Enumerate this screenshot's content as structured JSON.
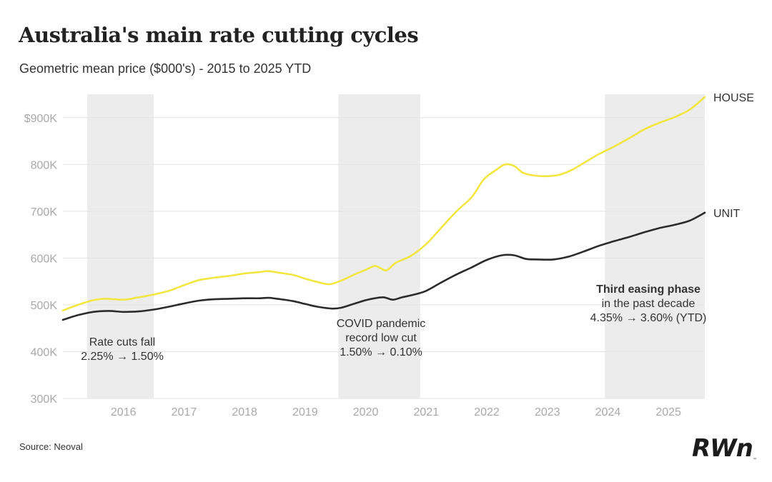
{
  "chart_data": {
    "type": "line",
    "title": "Australia's main rate cutting cycles",
    "subtitle": "Geometric mean price ($000's) - 2015 to 2025 YTD",
    "source": "Source: Neoval",
    "ylim": [
      300,
      950
    ],
    "y_ticks": [
      {
        "value": 300,
        "label": "300K"
      },
      {
        "value": 400,
        "label": "400K"
      },
      {
        "value": 500,
        "label": "500K"
      },
      {
        "value": 600,
        "label": "600K"
      },
      {
        "value": 700,
        "label": "700K"
      },
      {
        "value": 800,
        "label": "800K"
      },
      {
        "value": 900,
        "label": "$900K"
      }
    ],
    "xlim": [
      2015.0,
      2025.6
    ],
    "x_ticks": [
      {
        "value": 2016,
        "label": "2016"
      },
      {
        "value": 2017,
        "label": "2017"
      },
      {
        "value": 2018,
        "label": "2018"
      },
      {
        "value": 2019,
        "label": "2019"
      },
      {
        "value": 2020,
        "label": "2020"
      },
      {
        "value": 2021,
        "label": "2021"
      },
      {
        "value": 2022,
        "label": "2022"
      },
      {
        "value": 2023,
        "label": "2023"
      },
      {
        "value": 2024,
        "label": "2024"
      },
      {
        "value": 2025,
        "label": "2025"
      }
    ],
    "shaded_periods": [
      {
        "start": 2015.4,
        "end": 2016.5
      },
      {
        "start": 2019.55,
        "end": 2020.9
      },
      {
        "start": 2023.95,
        "end": 2025.6
      }
    ],
    "series": [
      {
        "name": "HOUSE",
        "color": "#f2e640",
        "points": [
          [
            2015.0,
            488
          ],
          [
            2015.25,
            500
          ],
          [
            2015.5,
            510
          ],
          [
            2015.7,
            513
          ],
          [
            2016.0,
            511
          ],
          [
            2016.25,
            516
          ],
          [
            2016.5,
            522
          ],
          [
            2016.75,
            530
          ],
          [
            2017.0,
            542
          ],
          [
            2017.25,
            553
          ],
          [
            2017.5,
            558
          ],
          [
            2017.75,
            562
          ],
          [
            2018.0,
            567
          ],
          [
            2018.25,
            570
          ],
          [
            2018.4,
            572
          ],
          [
            2018.6,
            568
          ],
          [
            2018.8,
            564
          ],
          [
            2019.0,
            556
          ],
          [
            2019.2,
            549
          ],
          [
            2019.4,
            544
          ],
          [
            2019.6,
            552
          ],
          [
            2019.8,
            564
          ],
          [
            2020.0,
            575
          ],
          [
            2020.15,
            583
          ],
          [
            2020.25,
            578
          ],
          [
            2020.35,
            574
          ],
          [
            2020.5,
            590
          ],
          [
            2020.75,
            605
          ],
          [
            2021.0,
            630
          ],
          [
            2021.25,
            665
          ],
          [
            2021.5,
            700
          ],
          [
            2021.75,
            730
          ],
          [
            2021.95,
            768
          ],
          [
            2022.15,
            788
          ],
          [
            2022.3,
            800
          ],
          [
            2022.45,
            797
          ],
          [
            2022.6,
            782
          ],
          [
            2022.8,
            776
          ],
          [
            2023.0,
            775
          ],
          [
            2023.2,
            778
          ],
          [
            2023.4,
            788
          ],
          [
            2023.6,
            803
          ],
          [
            2023.85,
            822
          ],
          [
            2024.1,
            838
          ],
          [
            2024.35,
            856
          ],
          [
            2024.6,
            875
          ],
          [
            2024.85,
            889
          ],
          [
            2025.1,
            901
          ],
          [
            2025.35,
            917
          ],
          [
            2025.6,
            944
          ]
        ],
        "label": "HOUSE"
      },
      {
        "name": "UNIT",
        "color": "#2b2b2b",
        "points": [
          [
            2015.0,
            468
          ],
          [
            2015.25,
            478
          ],
          [
            2015.5,
            485
          ],
          [
            2015.75,
            487
          ],
          [
            2016.0,
            485
          ],
          [
            2016.25,
            486
          ],
          [
            2016.5,
            490
          ],
          [
            2016.75,
            496
          ],
          [
            2017.0,
            503
          ],
          [
            2017.25,
            509
          ],
          [
            2017.5,
            512
          ],
          [
            2017.75,
            513
          ],
          [
            2018.0,
            514
          ],
          [
            2018.25,
            514
          ],
          [
            2018.4,
            515
          ],
          [
            2018.6,
            512
          ],
          [
            2018.8,
            508
          ],
          [
            2019.0,
            502
          ],
          [
            2019.2,
            496
          ],
          [
            2019.45,
            492
          ],
          [
            2019.6,
            494
          ],
          [
            2019.8,
            502
          ],
          [
            2020.0,
            510
          ],
          [
            2020.15,
            514
          ],
          [
            2020.3,
            516
          ],
          [
            2020.45,
            511
          ],
          [
            2020.6,
            516
          ],
          [
            2020.8,
            522
          ],
          [
            2021.0,
            530
          ],
          [
            2021.25,
            548
          ],
          [
            2021.5,
            565
          ],
          [
            2021.75,
            580
          ],
          [
            2022.0,
            596
          ],
          [
            2022.25,
            606
          ],
          [
            2022.45,
            606
          ],
          [
            2022.65,
            598
          ],
          [
            2022.85,
            597
          ],
          [
            2023.1,
            597
          ],
          [
            2023.35,
            603
          ],
          [
            2023.6,
            614
          ],
          [
            2023.85,
            626
          ],
          [
            2024.1,
            636
          ],
          [
            2024.35,
            645
          ],
          [
            2024.6,
            655
          ],
          [
            2024.85,
            664
          ],
          [
            2025.1,
            671
          ],
          [
            2025.35,
            680
          ],
          [
            2025.6,
            697
          ]
        ],
        "label": "UNIT"
      }
    ],
    "annotations": [
      {
        "lines": [
          "Rate cuts fall",
          "2.25% → 1.50%"
        ],
        "bold_first": false
      },
      {
        "lines": [
          "COVID pandemic",
          "record low cut",
          "1.50% → 0.10%"
        ],
        "bold_first": false
      },
      {
        "lines": [
          "Third easing phase",
          "in the past decade",
          "4.35% → 3.60% (YTD)"
        ],
        "bold_first": true
      }
    ]
  },
  "logo": {
    "text": "RWn",
    "tm": "™"
  }
}
